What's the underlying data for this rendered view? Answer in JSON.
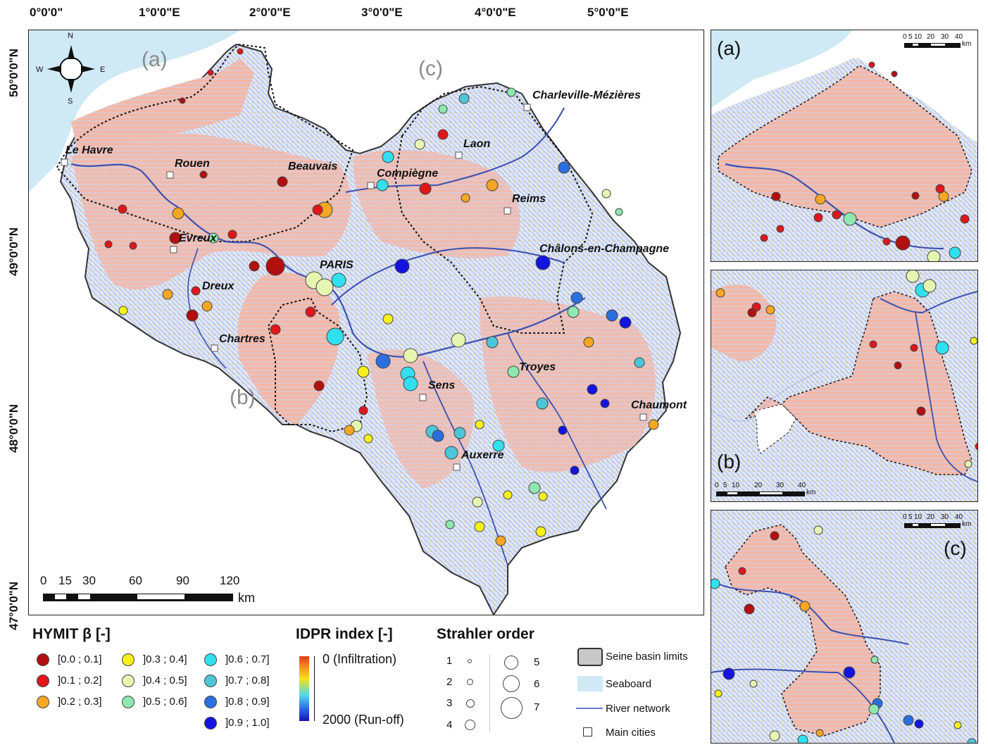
{
  "colors": {
    "ocean": "#cfe9f5",
    "infiltration": "#f3a08f",
    "runoff": "#b8c8ee",
    "river": "#3b4fb0",
    "outline": "#333333"
  },
  "map": {
    "top_lon_labels": [
      "0°0'0\"",
      "1°0'0\"E",
      "2°0'0\"E",
      "3°0'0\"E",
      "4°0'0\"E",
      "5°0'0\"E"
    ],
    "left_lat_labels": [
      "50°0'0\"N",
      "49°0'0\"N",
      "48°0'0\"N",
      "47°0'0\"N"
    ],
    "zone_labels": [
      "(a)",
      "(b)",
      "(c)"
    ],
    "cities": [
      {
        "name": "Le Havre"
      },
      {
        "name": "Rouen"
      },
      {
        "name": "Beauvais"
      },
      {
        "name": "Compiègne"
      },
      {
        "name": "Laon"
      },
      {
        "name": "Charleville-Mézières"
      },
      {
        "name": "Reims"
      },
      {
        "name": "Châlons-en-Champagne"
      },
      {
        "name": "Evreux"
      },
      {
        "name": "PARIS"
      },
      {
        "name": "Dreux"
      },
      {
        "name": "Chartres"
      },
      {
        "name": "Troyes"
      },
      {
        "name": "Sens"
      },
      {
        "name": "Chaumont"
      },
      {
        "name": "Auxerre"
      }
    ],
    "compass": {
      "n": "N",
      "s": "S",
      "e": "E",
      "w": "W"
    },
    "scale": {
      "ticks": [
        "0",
        "15",
        "30",
        "60",
        "90",
        "120"
      ],
      "unit": "km"
    }
  },
  "insets": {
    "a": {
      "label": "(a)",
      "scale_ticks": [
        "0",
        "5",
        "10",
        "20",
        "30",
        "40"
      ],
      "unit": "km"
    },
    "b": {
      "label": "(b)",
      "scale_ticks": [
        "0",
        "5",
        "10",
        "20",
        "30",
        "40"
      ],
      "unit": "km"
    },
    "c": {
      "label": "(c)",
      "scale_ticks": [
        "0",
        "5",
        "10",
        "20",
        "30",
        "40"
      ],
      "unit": "km"
    }
  },
  "legend": {
    "hymit": {
      "title": "HYMIT β [-]",
      "classes": [
        {
          "label": "[0.0 ; 0.1]",
          "color": "#b30f0f"
        },
        {
          "label": "]0.1 ; 0.2]",
          "color": "#e0161b"
        },
        {
          "label": "]0.2 ; 0.3]",
          "color": "#f5a623"
        },
        {
          "label": "]0.3 ; 0.4]",
          "color": "#f7f01a"
        },
        {
          "label": "]0.4 ; 0.5]",
          "color": "#e6f5b0"
        },
        {
          "label": "]0.5 ; 0.6]",
          "color": "#8ee8b0"
        },
        {
          "label": "]0.6 ; 0.7]",
          "color": "#30e0ee"
        },
        {
          "label": "]0.7 ; 0.8]",
          "color": "#4cc6d8"
        },
        {
          "label": "]0.8 ; 0.9]",
          "color": "#2a6fe0"
        },
        {
          "label": "]0.9 ; 1.0]",
          "color": "#1414e0"
        }
      ]
    },
    "idpr": {
      "title": "IDPR index [-]",
      "top": "0 (Infiltration)",
      "bottom": "2000 (Run-off)"
    },
    "strahler": {
      "title": "Strahler order",
      "orders": [
        "1",
        "2",
        "3",
        "4",
        "5",
        "6",
        "7"
      ]
    },
    "other": {
      "basin": "Seine basin limits",
      "seaboard": "Seaboard",
      "river": "River network",
      "cities": "Main cities"
    }
  }
}
